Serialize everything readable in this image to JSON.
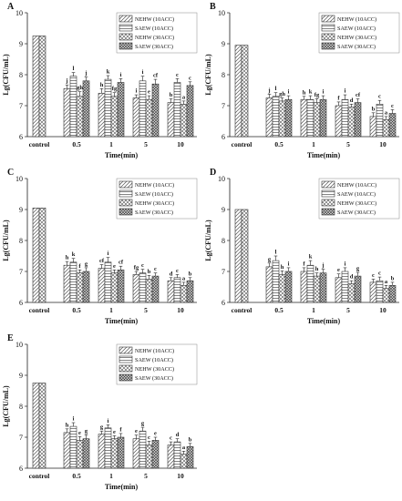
{
  "figure": {
    "patterns": {
      "NEHW (10ACC)": "diag",
      "SAEW (10ACC)": "horiz",
      "NEHW (30ACC)": "cross",
      "SAEW (30ACC)": "dense"
    }
  },
  "chart_data": [
    {
      "type": "bar",
      "panel_label": "A",
      "ylabel": "Lg(CFU/mL)",
      "xlabel": "Time(min)",
      "ylim": [
        6,
        10
      ],
      "yticks": [
        6,
        7,
        8,
        9,
        10
      ],
      "control_value": 9.25,
      "categories": [
        "0.5",
        "1",
        "5",
        "10"
      ],
      "series": [
        {
          "name": "NEHW (10ACC)",
          "values": [
            7.55,
            7.4,
            7.25,
            7.1
          ],
          "errors": [
            0.12,
            0.15,
            0.1,
            0.12
          ],
          "labels": [
            "j",
            "h",
            "i",
            "b"
          ]
        },
        {
          "name": "SAEW (10ACC)",
          "values": [
            7.95,
            7.85,
            7.8,
            7.75
          ],
          "errors": [
            0.12,
            0.12,
            0.15,
            0.12
          ],
          "labels": [
            "l",
            "k",
            "i",
            "c"
          ]
        },
        {
          "name": "NEHW (30ACC)",
          "values": [
            7.3,
            7.3,
            7.2,
            7.05
          ],
          "errors": [
            0.15,
            0.12,
            0.12,
            0.1
          ],
          "labels": [
            "gh",
            "fg",
            "e",
            "a"
          ]
        },
        {
          "name": "SAEW (30ACC)",
          "values": [
            7.8,
            7.75,
            7.7,
            7.65
          ],
          "errors": [
            0.12,
            0.12,
            0.15,
            0.12
          ],
          "labels": [
            "j",
            "i",
            "cf",
            "c"
          ]
        }
      ]
    },
    {
      "type": "bar",
      "panel_label": "B",
      "ylabel": "Lg(CFU/mL)",
      "xlabel": "Time(min)",
      "ylim": [
        6,
        10
      ],
      "yticks": [
        6,
        7,
        8,
        9,
        10
      ],
      "control_value": 8.95,
      "categories": [
        "0.5",
        "1",
        "5",
        "10"
      ],
      "series": [
        {
          "name": "NEHW (10ACC)",
          "values": [
            7.25,
            7.2,
            7.0,
            6.65
          ],
          "errors": [
            0.12,
            0.1,
            0.12,
            0.12
          ],
          "labels": [
            "j",
            "h",
            "f",
            "b"
          ]
        },
        {
          "name": "SAEW (10ACC)",
          "values": [
            7.3,
            7.2,
            7.2,
            7.05
          ],
          "errors": [
            0.12,
            0.12,
            0.15,
            0.12
          ],
          "labels": [
            "l",
            "k",
            "i",
            "c"
          ]
        },
        {
          "name": "NEHW (30ACC)",
          "values": [
            7.15,
            7.1,
            6.95,
            6.55
          ],
          "errors": [
            0.1,
            0.12,
            0.1,
            0.1
          ],
          "labels": [
            "gh",
            "fg",
            "d",
            "a"
          ]
        },
        {
          "name": "SAEW (30ACC)",
          "values": [
            7.2,
            7.2,
            7.1,
            6.75
          ],
          "errors": [
            0.12,
            0.12,
            0.12,
            0.12
          ],
          "labels": [
            "i",
            "i",
            "cf",
            "c"
          ]
        }
      ]
    },
    {
      "type": "bar",
      "panel_label": "C",
      "ylabel": "Lg(CFU/mL)",
      "xlabel": "Time(min)",
      "ylim": [
        6,
        10
      ],
      "yticks": [
        6,
        7,
        8,
        9,
        10
      ],
      "control_value": 9.05,
      "categories": [
        "0.5",
        "1",
        "5",
        "10"
      ],
      "series": [
        {
          "name": "NEHW (10ACC)",
          "values": [
            7.2,
            7.1,
            6.9,
            6.7
          ],
          "errors": [
            0.12,
            0.12,
            0.1,
            0.1
          ],
          "labels": [
            "h",
            "cf",
            "fg",
            "d"
          ]
        },
        {
          "name": "SAEW (10ACC)",
          "values": [
            7.3,
            7.3,
            6.95,
            6.8
          ],
          "errors": [
            0.12,
            0.15,
            0.12,
            0.1
          ],
          "labels": [
            "k",
            "i",
            "c",
            "c"
          ]
        },
        {
          "name": "NEHW (30ACC)",
          "values": [
            6.95,
            6.95,
            6.75,
            6.55
          ],
          "errors": [
            0.1,
            0.1,
            0.12,
            0.1
          ],
          "labels": [
            "f",
            "e",
            "b",
            "a"
          ]
        },
        {
          "name": "SAEW (30ACC)",
          "values": [
            7.0,
            7.05,
            6.85,
            6.7
          ],
          "errors": [
            0.12,
            0.12,
            0.1,
            0.1
          ],
          "labels": [
            "g",
            "cf",
            "c",
            "b"
          ]
        }
      ]
    },
    {
      "type": "bar",
      "panel_label": "D",
      "ylabel": "Lg(CFU/mL)",
      "xlabel": "Time(min)",
      "ylim": [
        6,
        10
      ],
      "yticks": [
        6,
        7,
        8,
        9,
        10
      ],
      "control_value": 9.0,
      "categories": [
        "0.5",
        "1",
        "5",
        "10"
      ],
      "series": [
        {
          "name": "NEHW (10ACC)",
          "values": [
            7.15,
            7.0,
            6.8,
            6.65
          ],
          "errors": [
            0.12,
            0.12,
            0.12,
            0.1
          ],
          "labels": [
            "g",
            "f",
            "e",
            "c"
          ]
        },
        {
          "name": "SAEW (10ACC)",
          "values": [
            7.35,
            7.2,
            7.0,
            6.7
          ],
          "errors": [
            0.15,
            0.15,
            0.12,
            0.12
          ],
          "labels": [
            "l",
            "k",
            "i",
            "c"
          ]
        },
        {
          "name": "NEHW (30ACC)",
          "values": [
            6.9,
            6.85,
            6.6,
            6.45
          ],
          "errors": [
            0.12,
            0.1,
            0.1,
            0.1
          ],
          "labels": [
            "h",
            "h",
            "d",
            "a"
          ]
        },
        {
          "name": "SAEW (30ACC)",
          "values": [
            7.0,
            6.95,
            6.85,
            6.55
          ],
          "errors": [
            0.12,
            0.12,
            0.12,
            0.1
          ],
          "labels": [
            "i",
            "j",
            "g",
            "b"
          ]
        }
      ]
    },
    {
      "type": "bar",
      "panel_label": "E",
      "ylabel": "Lg(CFU/mL)",
      "xlabel": "Time(min)",
      "ylim": [
        6,
        10
      ],
      "yticks": [
        6,
        7,
        8,
        9,
        10
      ],
      "control_value": 8.75,
      "categories": [
        "0.5",
        "1",
        "5",
        "10"
      ],
      "series": [
        {
          "name": "NEHW (10ACC)",
          "values": [
            7.15,
            7.1,
            6.95,
            6.75
          ],
          "errors": [
            0.12,
            0.1,
            0.12,
            0.1
          ],
          "labels": [
            "h",
            "g",
            "e",
            "c"
          ]
        },
        {
          "name": "SAEW (10ACC)",
          "values": [
            7.35,
            7.3,
            7.2,
            6.85
          ],
          "errors": [
            0.12,
            0.1,
            0.12,
            0.1
          ],
          "labels": [
            "i",
            "i",
            "g",
            "d"
          ]
        },
        {
          "name": "NEHW (30ACC)",
          "values": [
            6.9,
            6.95,
            6.75,
            6.45
          ],
          "errors": [
            0.12,
            0.1,
            0.12,
            0.1
          ],
          "labels": [
            "e",
            "e",
            "c",
            "a"
          ]
        },
        {
          "name": "SAEW (30ACC)",
          "values": [
            6.95,
            7.0,
            6.9,
            6.7
          ],
          "errors": [
            0.12,
            0.12,
            0.1,
            0.1
          ],
          "labels": [
            "g",
            "f",
            "e",
            "b"
          ]
        }
      ]
    }
  ]
}
